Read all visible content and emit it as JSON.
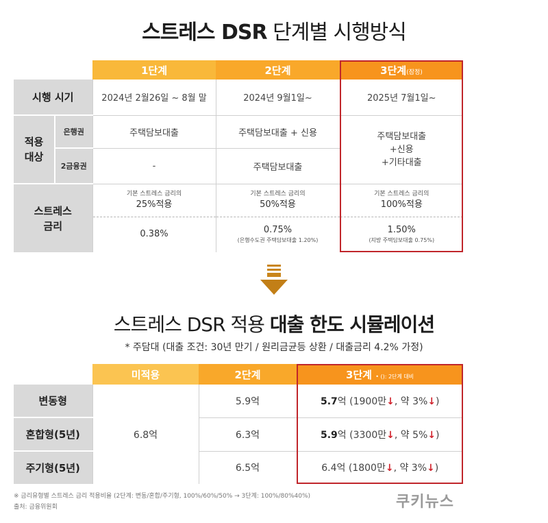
{
  "title1": {
    "bold": "스트레스 DSR",
    "rest": " 단계별 시행방식"
  },
  "table1": {
    "headers": [
      "1단계",
      "2단계",
      "3단계",
      "(잠정)"
    ],
    "rows": {
      "period": {
        "label": "시행 시기",
        "values": [
          "2024년 2월26일 ~ 8월 말",
          "2024년 9월1일~",
          "2025년 7월1일~"
        ]
      },
      "target": {
        "label_line1": "적용",
        "label_line2": "대상",
        "bank": {
          "label": "은행권",
          "values": [
            "주택담보대출",
            "주택담보대출 + 신용"
          ]
        },
        "second": {
          "label": "2금융권",
          "values": [
            "-",
            "주택담보대출"
          ]
        },
        "stage3": [
          "주택담보대출",
          "+신용",
          "+기타대출"
        ]
      },
      "stress": {
        "label_line1": "스트레스",
        "label_line2": "금리",
        "applied": [
          {
            "line1": "기본 스트레스 금리의",
            "line2": "25%적용"
          },
          {
            "line1": "기본 스트레스 금리의",
            "line2": "50%적용"
          },
          {
            "line1": "기본 스트레스 금리의",
            "line2": "100%적용"
          }
        ],
        "rates": [
          {
            "value": "0.38%",
            "note": ""
          },
          {
            "value": "0.75%",
            "note": "(은행수도권 주택담보대출 1.20%)"
          },
          {
            "value": "1.50%",
            "note": "(지방 주택담보대출 0.75%)"
          }
        ]
      }
    }
  },
  "title2": {
    "normal": "스트레스 DSR 적용 ",
    "bold": "대출 한도 시뮬레이션"
  },
  "subtitle2": "* 주담대 (대출 조건: 30년 만기 / 원리금균등 상환 / 대출금리 4.2% 가정)",
  "table2": {
    "headers": [
      "미적용",
      "2단계",
      "3단계",
      "• (): 2단계 대비"
    ],
    "rows": [
      {
        "label": "변동형",
        "stage2": "5.9억",
        "s3_amount": "5.7",
        "s3_unit": "억",
        "s3_diff": "(1900만",
        "s3_pct": ", 약 3%",
        "s3_close": ")"
      },
      {
        "label": "혼합형(5년)",
        "stage2": "6.3억",
        "s3_amount": "5.9",
        "s3_unit": "억",
        "s3_diff": "(3300만",
        "s3_pct": ", 약 5%",
        "s3_close": ")"
      },
      {
        "label": "주기형(5년)",
        "stage2": "6.5억",
        "s3_amount": "6.4",
        "s3_unit": "억",
        "s3_diff": "(1800만",
        "s3_pct": ", 약 3%",
        "s3_close": ")"
      }
    ],
    "unapplied": "6.8억",
    "down_arrow": "↓"
  },
  "footnote": "※ 금리유형별 스트레스 금리 적용비율 (2단계: 변동/혼합/주기형, 100%/60%/50% → 3단계: 100%/80%40%)",
  "source": "출처: 금융위원회",
  "logo": "쿠키뉴스",
  "colors": {
    "accent": "#f7941d",
    "highlight_border": "#c0252a",
    "header_gray": "#d9d9d9",
    "down_red": "#d0202a"
  }
}
